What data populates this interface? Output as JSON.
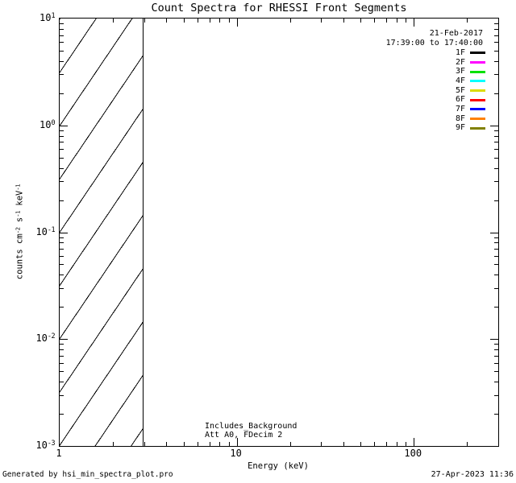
{
  "chart_data": {
    "type": "line",
    "title": "Count Spectra for RHESSI Front Segments",
    "xlabel": "Energy (keV)",
    "ylabel": "counts cm^-2 s^-1 keV^-1",
    "ylabel_parts": [
      {
        "text": "counts cm",
        "sup": false
      },
      {
        "text": "-2",
        "sup": true
      },
      {
        "text": " s",
        "sup": false
      },
      {
        "text": "-1",
        "sup": true
      },
      {
        "text": " keV",
        "sup": false
      },
      {
        "text": "-1",
        "sup": true
      }
    ],
    "x_axis": {
      "scale": "log",
      "unit": "keV",
      "min": 1,
      "max": 300,
      "major_ticks": [
        {
          "value": 1,
          "label": "1"
        },
        {
          "value": 10,
          "label": "10"
        },
        {
          "value": 100,
          "label": "100"
        }
      ]
    },
    "y_axis": {
      "scale": "log",
      "min": 0.001,
      "max": 10,
      "tick_label_base": "10",
      "major_tick_exponents": [
        1,
        0,
        -1,
        -2,
        -3
      ]
    },
    "series": [],
    "hatched_region": {
      "x_min_kev": 1,
      "x_max_kev": 3,
      "style": "diagonal-hatch"
    },
    "grid": false,
    "legend_position": "top-right-inside"
  },
  "legend": {
    "date": "21-Feb-2017",
    "time_range": "17:39:00 to 17:40:00",
    "entries": [
      {
        "label": "1F",
        "color": "#000000"
      },
      {
        "label": "2F",
        "color": "#ff00ff"
      },
      {
        "label": "3F",
        "color": "#00e100"
      },
      {
        "label": "4F",
        "color": "#00ffff"
      },
      {
        "label": "5F",
        "color": "#dcdc00"
      },
      {
        "label": "6F",
        "color": "#ff0000"
      },
      {
        "label": "7F",
        "color": "#0000ff"
      },
      {
        "label": "8F",
        "color": "#ff8000"
      },
      {
        "label": "9F",
        "color": "#808000"
      }
    ]
  },
  "annotations": {
    "background_note": "Includes_Background",
    "attenuator_note": "Att A0, FDecim 2"
  },
  "footer": {
    "generated_by": "Generated by hsi_min_spectra_plot.pro",
    "timestamp": "27-Apr-2023 11:36"
  }
}
